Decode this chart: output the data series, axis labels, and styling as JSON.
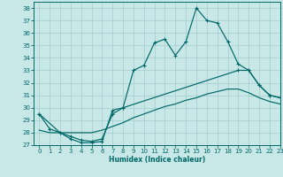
{
  "background_color": "#c8e8e8",
  "grid_color": "#a8d0d0",
  "line_color": "#006868",
  "xlabel": "Humidex (Indice chaleur)",
  "ylim": [
    27,
    38.5
  ],
  "xlim": [
    -0.5,
    23
  ],
  "yticks": [
    27,
    28,
    29,
    30,
    31,
    32,
    33,
    34,
    35,
    36,
    37,
    38
  ],
  "xticks": [
    0,
    1,
    2,
    3,
    4,
    5,
    6,
    7,
    8,
    9,
    10,
    11,
    12,
    13,
    14,
    15,
    16,
    17,
    18,
    19,
    20,
    21,
    22,
    23
  ],
  "line1_x": [
    0,
    1,
    2,
    3,
    4,
    5,
    6,
    7,
    8,
    9,
    10,
    11,
    12,
    13,
    14,
    15,
    16,
    17,
    18,
    19,
    20,
    21,
    22,
    23
  ],
  "line1_y": [
    29.5,
    28.3,
    28.0,
    27.5,
    27.2,
    27.2,
    27.3,
    29.8,
    30.0,
    33.0,
    33.4,
    35.2,
    35.5,
    34.2,
    35.3,
    38.0,
    37.0,
    36.8,
    35.3,
    33.5,
    33.0,
    31.8,
    31.0,
    30.8
  ],
  "line2_x": [
    0,
    2,
    3,
    4,
    5,
    6,
    7,
    8,
    19,
    20,
    21,
    22,
    23
  ],
  "line2_y": [
    29.5,
    28.0,
    27.7,
    27.4,
    27.3,
    27.5,
    29.5,
    30.0,
    33.0,
    33.0,
    31.8,
    31.0,
    30.8
  ],
  "line3_x": [
    0,
    1,
    2,
    3,
    4,
    5,
    6,
    7,
    8,
    9,
    10,
    11,
    12,
    13,
    14,
    15,
    16,
    17,
    18,
    19,
    20,
    21,
    22,
    23
  ],
  "line3_y": [
    28.2,
    28.0,
    28.0,
    28.0,
    28.0,
    28.0,
    28.2,
    28.5,
    28.8,
    29.2,
    29.5,
    29.8,
    30.1,
    30.3,
    30.6,
    30.8,
    31.1,
    31.3,
    31.5,
    31.5,
    31.2,
    30.8,
    30.5,
    30.3
  ]
}
